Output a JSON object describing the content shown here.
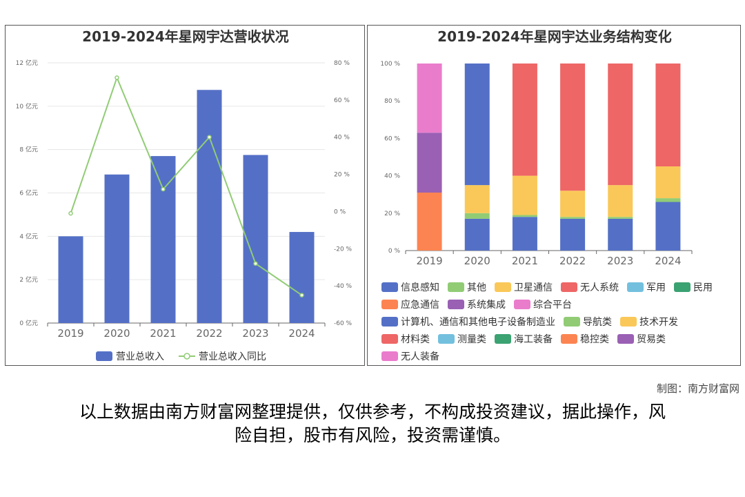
{
  "colors": {
    "bar": "#5470c6",
    "line": "#91cc75",
    "grid": "#e6e6e6",
    "axis": "#666666",
    "title": "#333333"
  },
  "chart_data": [
    {
      "type": "bar",
      "title": "2019-2024年星网宇达营收状况",
      "categories": [
        "2019",
        "2020",
        "2021",
        "2022",
        "2023",
        "2024"
      ],
      "series": [
        {
          "name": "营业总收入",
          "type": "bar",
          "axis": "left",
          "values": [
            4.0,
            6.85,
            7.7,
            10.75,
            7.75,
            4.2
          ]
        },
        {
          "name": "营业总收入同比",
          "type": "line",
          "axis": "right",
          "values": [
            -1,
            72,
            12,
            40,
            -28,
            -45
          ]
        }
      ],
      "ylim_left": [
        0,
        12
      ],
      "yticks_left": [
        "0 亿元",
        "2 亿元",
        "4 亿元",
        "6 亿元",
        "8 亿元",
        "10 亿元",
        "12 亿元"
      ],
      "ylim_right": [
        -60,
        80
      ],
      "yticks_right": [
        "-60 %",
        "-40 %",
        "-20 %",
        "0 %",
        "20 %",
        "40 %",
        "60 %",
        "80 %"
      ],
      "grid": true,
      "legend_position": "bottom"
    },
    {
      "type": "bar",
      "stacked": true,
      "title": "2019-2024年星网宇达业务结构变化",
      "categories": [
        "2019",
        "2020",
        "2021",
        "2022",
        "2023",
        "2024"
      ],
      "ylim": [
        0,
        100
      ],
      "yticks": [
        "0 %",
        "20 %",
        "40 %",
        "60 %",
        "80 %",
        "100 %"
      ],
      "series": [
        {
          "name": "信息感知",
          "color": "#5470c6",
          "values": [
            0,
            0,
            18,
            17,
            17,
            26
          ]
        },
        {
          "name": "其他",
          "color": "#91cc75",
          "values": [
            0,
            0,
            1,
            1,
            1,
            2
          ]
        },
        {
          "name": "卫星通信",
          "color": "#fac858",
          "values": [
            0,
            0,
            21,
            14,
            17,
            17
          ]
        },
        {
          "name": "无人系统",
          "color": "#ee6666",
          "values": [
            0,
            0,
            60,
            68,
            65,
            55
          ]
        },
        {
          "name": "军用",
          "color": "#73c0de",
          "values": [
            0,
            0,
            0,
            0,
            0,
            0
          ]
        },
        {
          "name": "民用",
          "color": "#3ba272",
          "values": [
            0,
            0,
            0,
            0,
            0,
            0
          ]
        },
        {
          "name": "应急通信",
          "color": "#fc8452",
          "values": [
            31,
            0,
            0,
            0,
            0,
            0
          ]
        },
        {
          "name": "系统集成",
          "color": "#9a60b4",
          "values": [
            32,
            0,
            0,
            0,
            0,
            0
          ]
        },
        {
          "name": "综合平台",
          "color": "#ea7ccc",
          "values": [
            37,
            0,
            0,
            0,
            0,
            0
          ]
        },
        {
          "name": "计算机、通信和其他电子设备制造业",
          "color": "#5470c6",
          "values": [
            0,
            17,
            0,
            0,
            0,
            0
          ]
        },
        {
          "name": "导航类",
          "color": "#91cc75",
          "values": [
            0,
            3,
            0,
            0,
            0,
            0
          ]
        },
        {
          "name": "技术开发",
          "color": "#fac858",
          "values": [
            0,
            15,
            0,
            0,
            0,
            0
          ]
        },
        {
          "name": "材料类",
          "color": "#ee6666",
          "values": [
            0,
            0,
            0,
            0,
            0,
            0
          ]
        },
        {
          "name": "测量类",
          "color": "#73c0de",
          "values": [
            0,
            0,
            0,
            0,
            0,
            0
          ]
        },
        {
          "name": "海工装备",
          "color": "#3ba272",
          "values": [
            0,
            0,
            0,
            0,
            0,
            0
          ]
        },
        {
          "name": "稳控类",
          "color": "#fc8452",
          "values": [
            0,
            0,
            0,
            0,
            0,
            0
          ]
        },
        {
          "name": "贸易类",
          "color": "#9a60b4",
          "values": [
            0,
            0,
            0,
            0,
            0,
            0
          ]
        },
        {
          "name": "无人装备",
          "color": "#ea7ccc",
          "values": [
            0,
            0,
            0,
            0,
            0,
            0
          ]
        }
      ],
      "extra_segments": [
        {
          "category": "2020",
          "color": "#5470c6",
          "from": 35,
          "to": 100
        }
      ],
      "grid": false,
      "legend_position": "bottom"
    }
  ],
  "credit": "制图：南方财富网",
  "disclaimer_lines": [
    "以上数据由南方财富网整理提供，仅供参考，不构成投资建议，据此操作，风",
    "险自担，股市有风险，投资需谨慎。"
  ]
}
